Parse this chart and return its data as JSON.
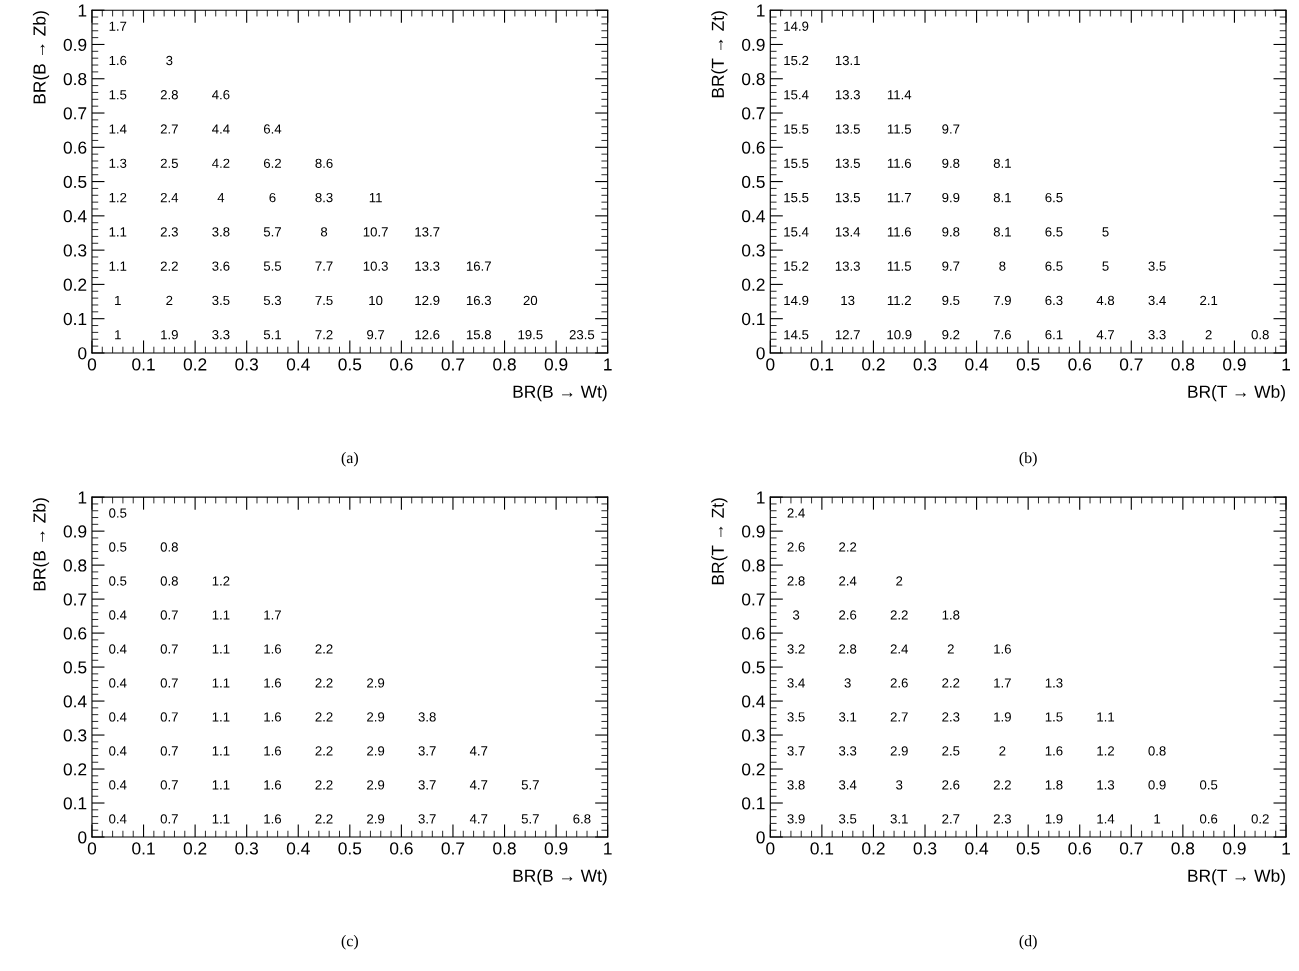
{
  "chart_data": [
    {
      "type": "heatmap",
      "xlabel": "BR(B → Wt)",
      "ylabel": "BR(B → Zb)",
      "annotations": [
        "(a)"
      ],
      "data_labels": true,
      "xlim": [
        0,
        1
      ],
      "ylim": [
        0,
        1
      ],
      "xticks": [
        0,
        0.1,
        0.2,
        0.3,
        0.4,
        0.5,
        0.6,
        0.7,
        0.8,
        0.9,
        1
      ],
      "yticks": [
        0,
        0.1,
        0.2,
        0.3,
        0.4,
        0.5,
        0.6,
        0.7,
        0.8,
        0.9,
        1
      ],
      "cells": [
        [
          1.7,
          null,
          null,
          null,
          null,
          null,
          null,
          null,
          null,
          null
        ],
        [
          1.6,
          3,
          null,
          null,
          null,
          null,
          null,
          null,
          null,
          null
        ],
        [
          1.5,
          2.8,
          4.6,
          null,
          null,
          null,
          null,
          null,
          null,
          null
        ],
        [
          1.4,
          2.7,
          4.4,
          6.4,
          null,
          null,
          null,
          null,
          null,
          null
        ],
        [
          1.3,
          2.5,
          4.2,
          6.2,
          8.6,
          null,
          null,
          null,
          null,
          null
        ],
        [
          1.2,
          2.4,
          4,
          6,
          8.3,
          11,
          null,
          null,
          null,
          null
        ],
        [
          1.1,
          2.3,
          3.8,
          5.7,
          8,
          10.7,
          13.7,
          null,
          null,
          null
        ],
        [
          1.1,
          2.2,
          3.6,
          5.5,
          7.7,
          10.3,
          13.3,
          16.7,
          null,
          null
        ],
        [
          1,
          2,
          3.5,
          5.3,
          7.5,
          10,
          12.9,
          16.3,
          20,
          null
        ],
        [
          1,
          1.9,
          3.3,
          5.1,
          7.2,
          9.7,
          12.6,
          15.8,
          19.5,
          23.5
        ]
      ]
    },
    {
      "type": "heatmap",
      "xlabel": "BR(T → Wb)",
      "ylabel": "BR(T → Zt)",
      "annotations": [
        "(b)"
      ],
      "data_labels": true,
      "xlim": [
        0,
        1
      ],
      "ylim": [
        0,
        1
      ],
      "xticks": [
        0,
        0.1,
        0.2,
        0.3,
        0.4,
        0.5,
        0.6,
        0.7,
        0.8,
        0.9,
        1
      ],
      "yticks": [
        0,
        0.1,
        0.2,
        0.3,
        0.4,
        0.5,
        0.6,
        0.7,
        0.8,
        0.9,
        1
      ],
      "cells": [
        [
          14.9,
          null,
          null,
          null,
          null,
          null,
          null,
          null,
          null,
          null
        ],
        [
          15.2,
          13.1,
          null,
          null,
          null,
          null,
          null,
          null,
          null,
          null
        ],
        [
          15.4,
          13.3,
          11.4,
          null,
          null,
          null,
          null,
          null,
          null,
          null
        ],
        [
          15.5,
          13.5,
          11.5,
          9.7,
          null,
          null,
          null,
          null,
          null,
          null
        ],
        [
          15.5,
          13.5,
          11.6,
          9.8,
          8.1,
          null,
          null,
          null,
          null,
          null
        ],
        [
          15.5,
          13.5,
          11.7,
          9.9,
          8.1,
          6.5,
          null,
          null,
          null,
          null
        ],
        [
          15.4,
          13.4,
          11.6,
          9.8,
          8.1,
          6.5,
          5,
          null,
          null,
          null
        ],
        [
          15.2,
          13.3,
          11.5,
          9.7,
          8,
          6.5,
          5,
          3.5,
          null,
          null
        ],
        [
          14.9,
          13,
          11.2,
          9.5,
          7.9,
          6.3,
          4.8,
          3.4,
          2.1,
          null
        ],
        [
          14.5,
          12.7,
          10.9,
          9.2,
          7.6,
          6.1,
          4.7,
          3.3,
          2,
          0.8
        ]
      ]
    },
    {
      "type": "heatmap",
      "xlabel": "BR(B → Wt)",
      "ylabel": "BR(B → Zb)",
      "annotations": [
        "(c)"
      ],
      "data_labels": true,
      "xlim": [
        0,
        1
      ],
      "ylim": [
        0,
        1
      ],
      "xticks": [
        0,
        0.1,
        0.2,
        0.3,
        0.4,
        0.5,
        0.6,
        0.7,
        0.8,
        0.9,
        1
      ],
      "yticks": [
        0,
        0.1,
        0.2,
        0.3,
        0.4,
        0.5,
        0.6,
        0.7,
        0.8,
        0.9,
        1
      ],
      "cells": [
        [
          0.5,
          null,
          null,
          null,
          null,
          null,
          null,
          null,
          null,
          null
        ],
        [
          0.5,
          0.8,
          null,
          null,
          null,
          null,
          null,
          null,
          null,
          null
        ],
        [
          0.5,
          0.8,
          1.2,
          null,
          null,
          null,
          null,
          null,
          null,
          null
        ],
        [
          0.4,
          0.7,
          1.1,
          1.7,
          null,
          null,
          null,
          null,
          null,
          null
        ],
        [
          0.4,
          0.7,
          1.1,
          1.6,
          2.2,
          null,
          null,
          null,
          null,
          null
        ],
        [
          0.4,
          0.7,
          1.1,
          1.6,
          2.2,
          2.9,
          null,
          null,
          null,
          null
        ],
        [
          0.4,
          0.7,
          1.1,
          1.6,
          2.2,
          2.9,
          3.8,
          null,
          null,
          null
        ],
        [
          0.4,
          0.7,
          1.1,
          1.6,
          2.2,
          2.9,
          3.7,
          4.7,
          null,
          null
        ],
        [
          0.4,
          0.7,
          1.1,
          1.6,
          2.2,
          2.9,
          3.7,
          4.7,
          5.7,
          null
        ],
        [
          0.4,
          0.7,
          1.1,
          1.6,
          2.2,
          2.9,
          3.7,
          4.7,
          5.7,
          6.8
        ]
      ]
    },
    {
      "type": "heatmap",
      "xlabel": "BR(T → Wb)",
      "ylabel": "BR(T → Zt)",
      "annotations": [
        "(d)"
      ],
      "data_labels": true,
      "xlim": [
        0,
        1
      ],
      "ylim": [
        0,
        1
      ],
      "xticks": [
        0,
        0.1,
        0.2,
        0.3,
        0.4,
        0.5,
        0.6,
        0.7,
        0.8,
        0.9,
        1
      ],
      "yticks": [
        0,
        0.1,
        0.2,
        0.3,
        0.4,
        0.5,
        0.6,
        0.7,
        0.8,
        0.9,
        1
      ],
      "cells": [
        [
          2.4,
          null,
          null,
          null,
          null,
          null,
          null,
          null,
          null,
          null
        ],
        [
          2.6,
          2.2,
          null,
          null,
          null,
          null,
          null,
          null,
          null,
          null
        ],
        [
          2.8,
          2.4,
          2,
          null,
          null,
          null,
          null,
          null,
          null,
          null
        ],
        [
          3,
          2.6,
          2.2,
          1.8,
          null,
          null,
          null,
          null,
          null,
          null
        ],
        [
          3.2,
          2.8,
          2.4,
          2,
          1.6,
          null,
          null,
          null,
          null,
          null
        ],
        [
          3.4,
          3,
          2.6,
          2.2,
          1.7,
          1.3,
          null,
          null,
          null,
          null
        ],
        [
          3.5,
          3.1,
          2.7,
          2.3,
          1.9,
          1.5,
          1.1,
          null,
          null,
          null
        ],
        [
          3.7,
          3.3,
          2.9,
          2.5,
          2,
          1.6,
          1.2,
          0.8,
          null,
          null
        ],
        [
          3.8,
          3.4,
          3,
          2.6,
          2.2,
          1.8,
          1.3,
          0.9,
          0.5,
          null
        ],
        [
          3.9,
          3.5,
          3.1,
          2.7,
          2.3,
          1.9,
          1.4,
          1,
          0.6,
          0.2
        ]
      ]
    }
  ]
}
